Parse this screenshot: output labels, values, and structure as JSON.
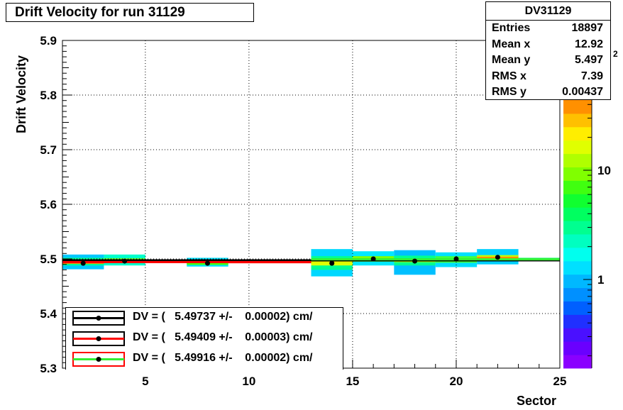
{
  "title": "Drift Velocity for run 31129",
  "stats": {
    "name": "DV31129",
    "rows": [
      {
        "label": "Entries",
        "value": "18897"
      },
      {
        "label": "Mean x",
        "value": "12.92"
      },
      {
        "label": "Mean y",
        "value": "5.497"
      },
      {
        "label": "RMS x",
        "value": "7.39"
      },
      {
        "label": "RMS y",
        "value": "0.00437"
      }
    ]
  },
  "legend": [
    {
      "text": "DV = (   5.49737 +/-    0.00002) cm/",
      "line_color": "#000000",
      "box_color": "#000000"
    },
    {
      "text": "DV = (   5.49409 +/-    0.00003) cm/",
      "line_color": "#ff0000",
      "box_color": "#000000"
    },
    {
      "text": "DV = (   5.49916 +/-    0.00002) cm/",
      "line_color": "#33ee33",
      "box_color": "#ff0000"
    }
  ],
  "colorbar": {
    "ticks": [
      "1",
      "10"
    ],
    "exponent_label": "2",
    "colors": [
      "#8a00ff",
      "#6a00ff",
      "#4a10ff",
      "#2030ff",
      "#0060ff",
      "#0090ff",
      "#00b8ff",
      "#00e0ff",
      "#00ffee",
      "#00ffc0",
      "#00ff90",
      "#00ff60",
      "#10ff30",
      "#40ff10",
      "#80ff00",
      "#b0ff00",
      "#e0ff00",
      "#ffee00",
      "#ffc000",
      "#ff9000"
    ]
  },
  "chart_data": {
    "type": "scatter",
    "title": "Drift Velocity for run 31129",
    "xlabel": "Sector",
    "ylabel": "Drift Velocity",
    "xlim": [
      1,
      25
    ],
    "ylim": [
      5.3,
      5.9
    ],
    "x_ticks": [
      5,
      10,
      15,
      20,
      25
    ],
    "y_ticks": [
      5.3,
      5.4,
      5.5,
      5.6,
      5.7,
      5.8,
      5.9
    ],
    "grid": true,
    "log_z": true,
    "legend_position": "bottom-left",
    "profile_points": [
      {
        "x": 2,
        "y": 5.492
      },
      {
        "x": 4,
        "y": 5.496
      },
      {
        "x": 8,
        "y": 5.492
      },
      {
        "x": 14,
        "y": 5.492
      },
      {
        "x": 16,
        "y": 5.5
      },
      {
        "x": 18,
        "y": 5.496
      },
      {
        "x": 20,
        "y": 5.5
      },
      {
        "x": 22,
        "y": 5.503
      }
    ],
    "heatmap_cells": [
      {
        "x0": 1,
        "x1": 3,
        "y0": 5.481,
        "y1": 5.508,
        "color": "#00c8ff"
      },
      {
        "x0": 1,
        "x1": 3,
        "y0": 5.488,
        "y1": 5.502,
        "color": "#00ff90"
      },
      {
        "x0": 1,
        "x1": 3,
        "y0": 5.491,
        "y1": 5.496,
        "color": "#ff8800"
      },
      {
        "x0": 3,
        "x1": 5,
        "y0": 5.488,
        "y1": 5.508,
        "color": "#00ffcc"
      },
      {
        "x0": 3,
        "x1": 5,
        "y0": 5.493,
        "y1": 5.501,
        "color": "#80ff00"
      },
      {
        "x0": 7,
        "x1": 9,
        "y0": 5.486,
        "y1": 5.502,
        "color": "#00e0ff"
      },
      {
        "x0": 7,
        "x1": 9,
        "y0": 5.489,
        "y1": 5.497,
        "color": "#40ff10"
      },
      {
        "x0": 9,
        "x1": 13,
        "y0": 5.492,
        "y1": 5.499,
        "color": "#ff2000"
      },
      {
        "x0": 13,
        "x1": 15,
        "y0": 5.468,
        "y1": 5.518,
        "color": "#00d8ff"
      },
      {
        "x0": 13,
        "x1": 15,
        "y0": 5.48,
        "y1": 5.505,
        "color": "#00ff90"
      },
      {
        "x0": 13,
        "x1": 15,
        "y0": 5.488,
        "y1": 5.497,
        "color": "#e0ff00"
      },
      {
        "x0": 15,
        "x1": 17,
        "y0": 5.488,
        "y1": 5.514,
        "color": "#00e8ff"
      },
      {
        "x0": 15,
        "x1": 17,
        "y0": 5.495,
        "y1": 5.505,
        "color": "#80ff00"
      },
      {
        "x0": 17,
        "x1": 19,
        "y0": 5.471,
        "y1": 5.516,
        "color": "#00c0ff"
      },
      {
        "x0": 17,
        "x1": 19,
        "y0": 5.488,
        "y1": 5.506,
        "color": "#00ff90"
      },
      {
        "x0": 17,
        "x1": 19,
        "y0": 5.494,
        "y1": 5.5,
        "color": "#b0ff00"
      },
      {
        "x0": 19,
        "x1": 21,
        "y0": 5.485,
        "y1": 5.512,
        "color": "#00e0ff"
      },
      {
        "x0": 19,
        "x1": 21,
        "y0": 5.493,
        "y1": 5.505,
        "color": "#40ff40"
      },
      {
        "x0": 21,
        "x1": 23,
        "y0": 5.49,
        "y1": 5.518,
        "color": "#00d0ff"
      },
      {
        "x0": 21,
        "x1": 23,
        "y0": 5.497,
        "y1": 5.507,
        "color": "#c0ff00"
      },
      {
        "x0": 21,
        "x1": 23,
        "y0": 5.501,
        "y1": 5.504,
        "color": "#ff9000"
      },
      {
        "x0": 23,
        "x1": 25,
        "y0": 5.496,
        "y1": 5.502,
        "color": "#00ff60"
      }
    ],
    "fit_lines": [
      {
        "x0": 1,
        "x1": 25,
        "y": 5.49737,
        "color": "#000000",
        "width": 3
      },
      {
        "x0": 1,
        "x1": 13,
        "y": 5.49409,
        "color": "#ff0000",
        "width": 3
      },
      {
        "x0": 13,
        "x1": 25,
        "y": 5.49916,
        "color": "#33ee33",
        "width": 3
      }
    ]
  }
}
